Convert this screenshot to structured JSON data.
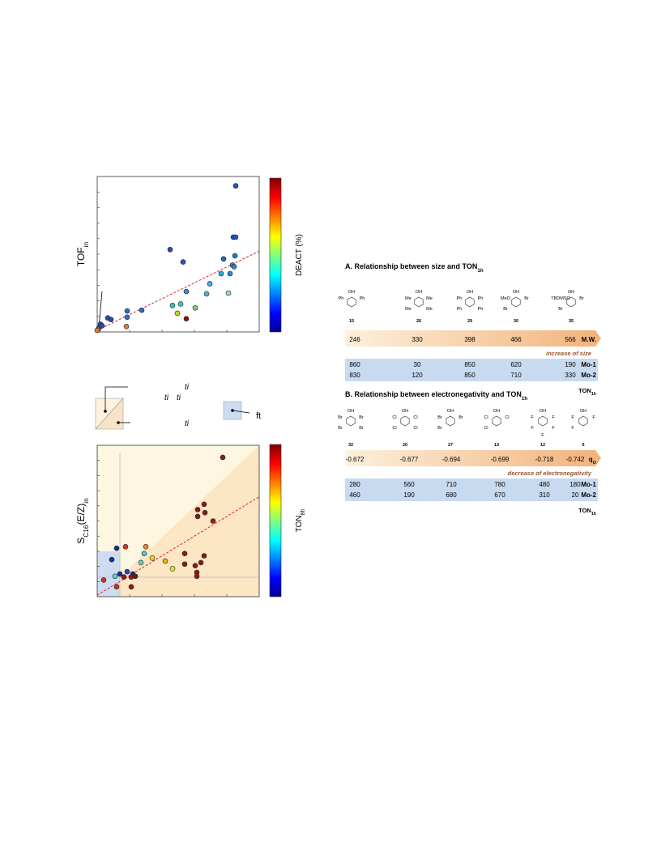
{
  "chart_data": [
    {
      "type": "scatter",
      "y_label": "TOF",
      "y_label_sub": "in",
      "colorbar_label": "DEACT (%)",
      "xlim": [
        0,
        100
      ],
      "ylim": [
        0,
        100
      ],
      "x": [
        85.5,
        84,
        85.5,
        45,
        78,
        85,
        53,
        83.5,
        84.5,
        76.5,
        82,
        55,
        69.5,
        46.5,
        51.5,
        60.5,
        67.5,
        81,
        49.5,
        55,
        18.5,
        27.5,
        18.5,
        18,
        6.5,
        8.5,
        2,
        3,
        1,
        0.5,
        0
      ],
      "values": [
        94,
        61,
        61,
        53,
        47,
        49,
        45,
        43,
        42,
        37.5,
        37.5,
        26,
        31,
        17,
        18,
        15.5,
        24.5,
        25,
        12,
        8.5,
        13.5,
        14,
        9.5,
        3.5,
        9,
        8,
        5,
        4,
        2.5,
        1.5,
        1
      ],
      "colors": [
        "#2258b8",
        "#2258b8",
        "#2258b8",
        "#2a4cb0",
        "#2268c4",
        "#2276cc",
        "#2258b8",
        "#2a86d4",
        "#2a86d4",
        "#33a6d8",
        "#2a86d4",
        "#2e8fd0",
        "#40b0e0",
        "#33c0c0",
        "#3cc8c0",
        "#8cc860",
        "#40b8d8",
        "#8ee0d0",
        "#b8d430",
        "#8b1010",
        "#2a70c8",
        "#2a70c8",
        "#2a70c8",
        "#e07a30",
        "#2a4cb0",
        "#2a4cb0",
        "#2a4cb0",
        "#2a4cb0",
        "#2a4cb0",
        "#e07a30",
        "#e07a30"
      ],
      "trend": {
        "x": [
          0,
          100
        ],
        "y": [
          1,
          52
        ]
      }
    },
    {
      "type": "scatter",
      "y_label": "S",
      "y_label_sub": "C16",
      "y_label_mid": "(E/Z)",
      "y_label_sub2": "in",
      "colorbar_label": "TON",
      "colorbar_label_sub": "8h",
      "xlim": [
        0,
        100
      ],
      "ylim": [
        0,
        100
      ],
      "x": [
        77.5,
        66,
        62,
        66.5,
        62,
        71.5,
        17.5,
        12,
        30,
        34,
        29,
        42,
        27,
        54,
        66,
        64,
        54,
        60.5,
        46.5,
        22,
        61.5,
        61.5,
        18.5,
        14,
        21,
        16.5,
        9,
        4,
        11,
        23.5,
        12,
        21
      ],
      "values": [
        92,
        61,
        57.5,
        55.5,
        53,
        50,
        33,
        32,
        33,
        25.5,
        28.5,
        23.5,
        22.5,
        28.5,
        27,
        22.5,
        21.5,
        20.5,
        18.5,
        15,
        16,
        13.5,
        16.5,
        15,
        13,
        13,
        24.5,
        11,
        13.5,
        13.5,
        6.5,
        6.5
      ],
      "colors": [
        "#8b1a1a",
        "#8b1a1a",
        "#8b1a1a",
        "#8b1a1a",
        "#8b1a1a",
        "#a01a1a",
        "#e0301e",
        "#1a2a9a",
        "#f08020",
        "#f0d020",
        "#50c8d0",
        "#f0b020",
        "#60d0c0",
        "#8b1a1a",
        "#8b1a1a",
        "#8b1a1a",
        "#8b1a1a",
        "#8b1a1a",
        "#e8e030",
        "#1a2a9a",
        "#8b1a1a",
        "#8b1a1a",
        "#3040c0",
        "#1a2a9a",
        "#8b1a1a",
        "#8b1a1a",
        "#1a2a9a",
        "#d03020",
        "#60d0d0",
        "#6a1a1a",
        "#d03020",
        "#8b1a1a"
      ],
      "trend": {
        "x": [
          0,
          100
        ],
        "y": [
          1,
          66
        ]
      }
    }
  ],
  "schematic": {
    "texts": [
      "ti",
      "ti",
      "ti",
      "ti",
      "ft"
    ]
  },
  "panel_a": {
    "title": "A. Relationship between size and TON",
    "title_sub": "1h",
    "compounds": [
      {
        "id": "15",
        "labels": [
          "OH",
          "Ph",
          "Ph"
        ]
      },
      {
        "id": "26",
        "labels": [
          "OH",
          "Me",
          "Me",
          "Me",
          "Me"
        ]
      },
      {
        "id": "29",
        "labels": [
          "OH",
          "Ph",
          "Ph",
          "Ph",
          "Ph"
        ]
      },
      {
        "id": "30",
        "labels": [
          "OH",
          "MeO",
          "Br",
          "Br"
        ]
      },
      {
        "id": "35",
        "labels": [
          "OH",
          "TBDMSO",
          "Br",
          "Br"
        ]
      }
    ],
    "scale": [
      "246",
      "330",
      "398",
      "466",
      "566"
    ],
    "scale_label": "M.W.",
    "scale_sub": "",
    "arrow_note": "increase of size",
    "rows": [
      {
        "name": "Mo-1",
        "values": [
          "860",
          "30",
          "850",
          "620",
          "190"
        ]
      },
      {
        "name": "Mo-2",
        "values": [
          "830",
          "120",
          "850",
          "710",
          "330"
        ]
      }
    ],
    "footer": "TON",
    "footer_sub": "1h"
  },
  "panel_b": {
    "title": "B. Relationship between electronegativity and TON",
    "title_sub": "1h",
    "compounds": [
      {
        "id": "32",
        "labels": [
          "OH",
          "Br",
          "Br",
          "Br",
          "Br"
        ]
      },
      {
        "id": "20",
        "labels": [
          "OH",
          "Cl",
          "Cl",
          "Cl",
          "Cl"
        ]
      },
      {
        "id": "27",
        "labels": [
          "OH",
          "Br",
          "Br",
          "Br"
        ]
      },
      {
        "id": "13",
        "labels": [
          "OH",
          "Cl",
          "Cl",
          "Cl"
        ]
      },
      {
        "id": "12",
        "labels": [
          "OH",
          "F",
          "F",
          "F",
          "F",
          "F"
        ]
      },
      {
        "id": "6",
        "labels": [
          "OH",
          "F",
          "F",
          "F"
        ]
      }
    ],
    "scale": [
      "-0.672",
      "-0.677",
      "-0.694",
      "-0.699",
      "-0.718",
      "-0.742"
    ],
    "scale_label": "q",
    "scale_sub": "O",
    "arrow_note": "decrease of electronegativity",
    "rows": [
      {
        "name": "Mo-1",
        "values": [
          "280",
          "560",
          "710",
          "780",
          "480",
          "180"
        ]
      },
      {
        "name": "Mo-2",
        "values": [
          "460",
          "190",
          "680",
          "670",
          "310",
          "20"
        ]
      }
    ],
    "footer": "TON",
    "footer_sub": "1h"
  }
}
